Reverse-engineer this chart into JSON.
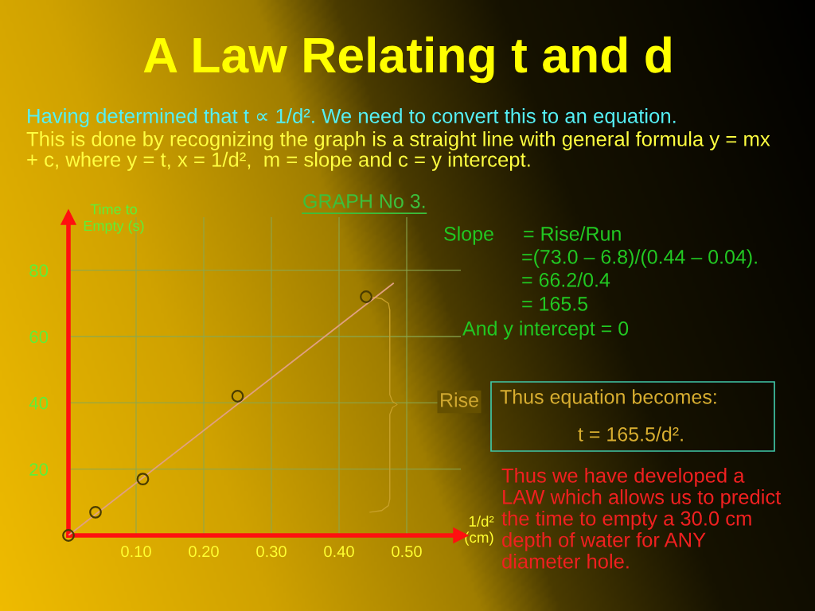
{
  "chart_data": {
    "type": "scatter",
    "title": "A Law Relating t and d",
    "subtitle": "GRAPH No 3.",
    "xlabel": "1/d²\n(cm)",
    "ylabel": "Time to\nEmpty (s)",
    "series": [
      {
        "color": "#4a3c00",
        "marker": "circle",
        "x": [
          0,
          0.04,
          0.11,
          0.25,
          0.44
        ],
        "values": [
          0,
          7,
          17,
          42,
          72
        ]
      },
      {
        "type": "line",
        "color": "#e0a080",
        "line_style": "solid",
        "x": [
          0,
          0.48
        ],
        "values": [
          0,
          76
        ]
      }
    ],
    "xlim": [
      0,
      0.58
    ],
    "ylim": [
      0,
      96
    ],
    "xticks": [
      {
        "value": 0.1,
        "label": "0.10"
      },
      {
        "value": 0.2,
        "label": "0.20"
      },
      {
        "value": 0.3,
        "label": "0.30"
      },
      {
        "value": 0.4,
        "label": "0.40"
      },
      {
        "value": 0.5,
        "label": "0.50"
      }
    ],
    "yticks": [
      20,
      40,
      60,
      80
    ],
    "grid": true,
    "annotations": [
      "Having determined that t ∝ 1/d². We need to convert this to an equation.",
      "This is done by recognizing the graph is a straight line with general formula y = mx\n+ c, where y = t, x = 1/d²,  m = slope and c = y intercept.",
      "Slope",
      "= Rise/Run",
      "=(73.0 – 6.8)/(0.44 – 0.04).",
      "= 66.2/0.4",
      "= 165.5",
      "And y intercept = 0",
      "Rise",
      "Thus equation becomes:",
      "t = 165.5/d².",
      "Thus we have developed a\nLAW which allows us to predict\nthe time to empty a 30.0 cm\ndepth of water for ANY\ndiameter hole."
    ]
  }
}
